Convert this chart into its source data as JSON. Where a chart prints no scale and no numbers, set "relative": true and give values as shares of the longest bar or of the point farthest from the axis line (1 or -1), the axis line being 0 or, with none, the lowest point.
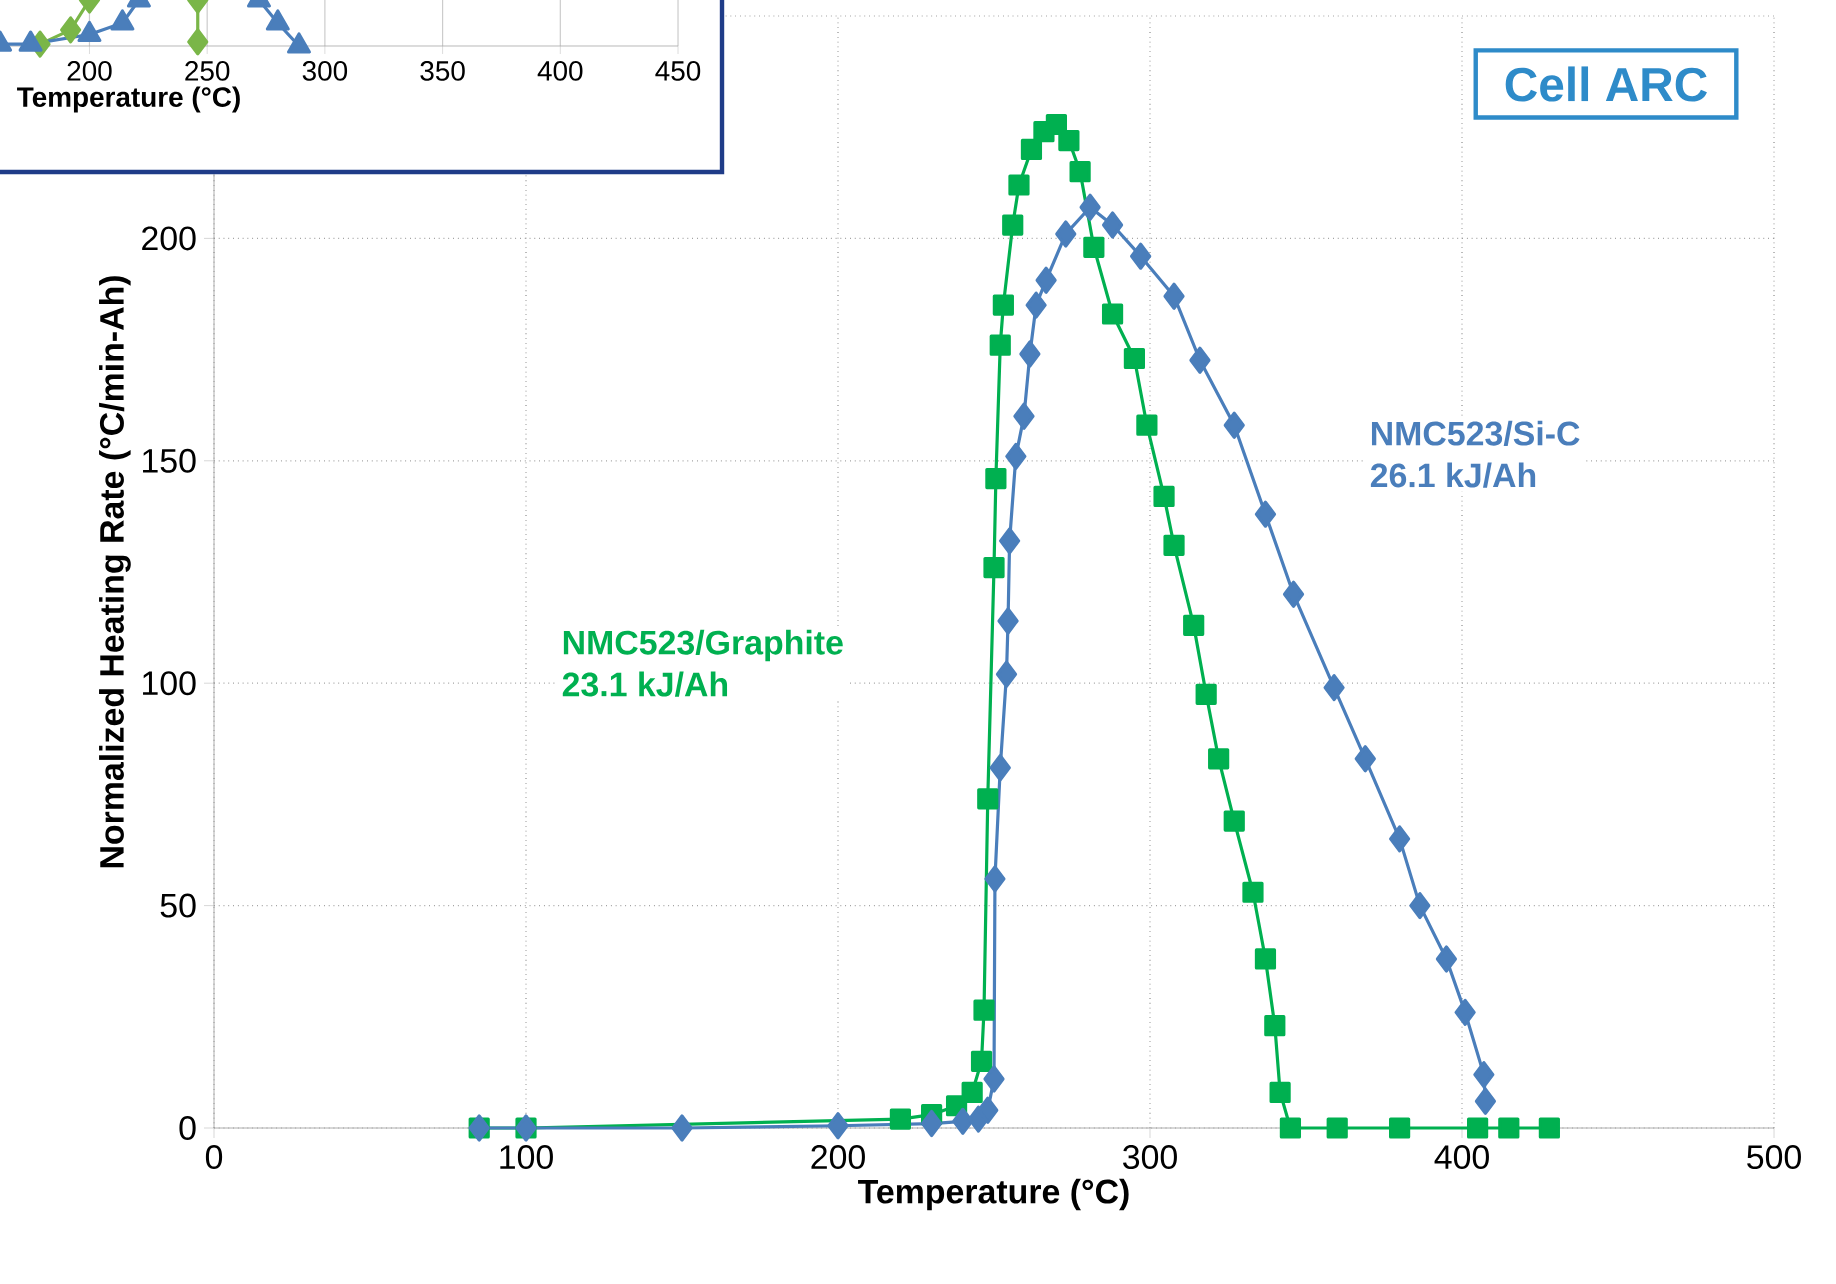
{
  "chart_data": [
    {
      "type": "line",
      "xlabel": "Temperature (°C)",
      "ylabel": "Normalized Heating Rate (°C/min-Ah)",
      "xlim": [
        0,
        500
      ],
      "ylim": [
        0,
        250
      ],
      "xticks": [
        0,
        100,
        200,
        300,
        400,
        500
      ],
      "yticks": [
        0,
        50,
        100,
        150,
        200,
        {
          "value": 250,
          "label": null
        }
      ],
      "grid": true,
      "line_style": "solid",
      "annotations": [
        "Cell ARC",
        "23.1 kJ/Ah",
        "26.1 kJ/Ah"
      ],
      "series": [
        {
          "name": "NMC523/Graphite",
          "color": "#00b050",
          "marker": "square",
          "x": [
            85,
            100,
            220,
            230,
            238,
            243,
            246,
            246.8,
            248,
            250,
            250.6,
            252,
            253,
            256,
            258,
            262,
            266,
            270,
            274,
            277.6,
            282,
            288,
            295,
            299,
            304.5,
            307.7,
            314,
            318,
            322,
            327,
            333,
            337,
            340,
            341.7,
            345,
            360,
            380,
            405,
            415,
            428
          ],
          "values": [
            0,
            0,
            2,
            3,
            5,
            8,
            15,
            26.5,
            74,
            126,
            146,
            176,
            185,
            203,
            212,
            220,
            224,
            225.6,
            222,
            215,
            198,
            183,
            173,
            158,
            142,
            131,
            113,
            97.5,
            83,
            69,
            53,
            38,
            23,
            8,
            0,
            0,
            0,
            0,
            0,
            0
          ]
        },
        {
          "name": "NMC523/Si-C",
          "color": "#4a7ebb",
          "marker": "diamond",
          "x": [
            85,
            100,
            150,
            200,
            230,
            240,
            245,
            248,
            250,
            250.3,
            252,
            254,
            254.5,
            255,
            257,
            259.6,
            261.5,
            263.5,
            266.7,
            273,
            280.8,
            288,
            297,
            307.7,
            316,
            327,
            337,
            346,
            359,
            369,
            380,
            386.5,
            395,
            401,
            407,
            407.5
          ],
          "values": [
            0,
            0,
            0,
            0.5,
            1,
            1.5,
            2,
            4,
            11,
            56,
            81,
            102,
            114,
            132,
            151,
            160,
            174,
            185,
            190.6,
            201,
            207,
            203,
            196,
            187,
            172.6,
            158,
            138,
            120,
            99,
            83,
            65,
            50,
            38,
            26,
            12,
            6
          ]
        }
      ]
    },
    {
      "type": "line",
      "relative": true,
      "tick_labels": "x",
      "xlabel": "Temperature (°C)",
      "xlim": [
        162,
        450
      ],
      "xticks": [
        200,
        250,
        300,
        350,
        400,
        450
      ],
      "grid": "x",
      "series": [
        {
          "color": "#7ab648",
          "marker": "diamond",
          "x": [
            179,
            192,
            200,
            205,
            246,
            246
          ],
          "values": [
            0.04,
            0.35,
            1.0,
            null,
            1.0,
            0.09
          ]
        },
        {
          "color": "#4a7ebb",
          "marker": "triangle",
          "x": [
            162,
            175,
            200,
            214,
            221,
            226,
            272,
            280,
            289
          ],
          "values": [
            0.04,
            0.04,
            0.25,
            0.5,
            1.0,
            null,
            1.0,
            0.5,
            0
          ]
        }
      ]
    }
  ]
}
